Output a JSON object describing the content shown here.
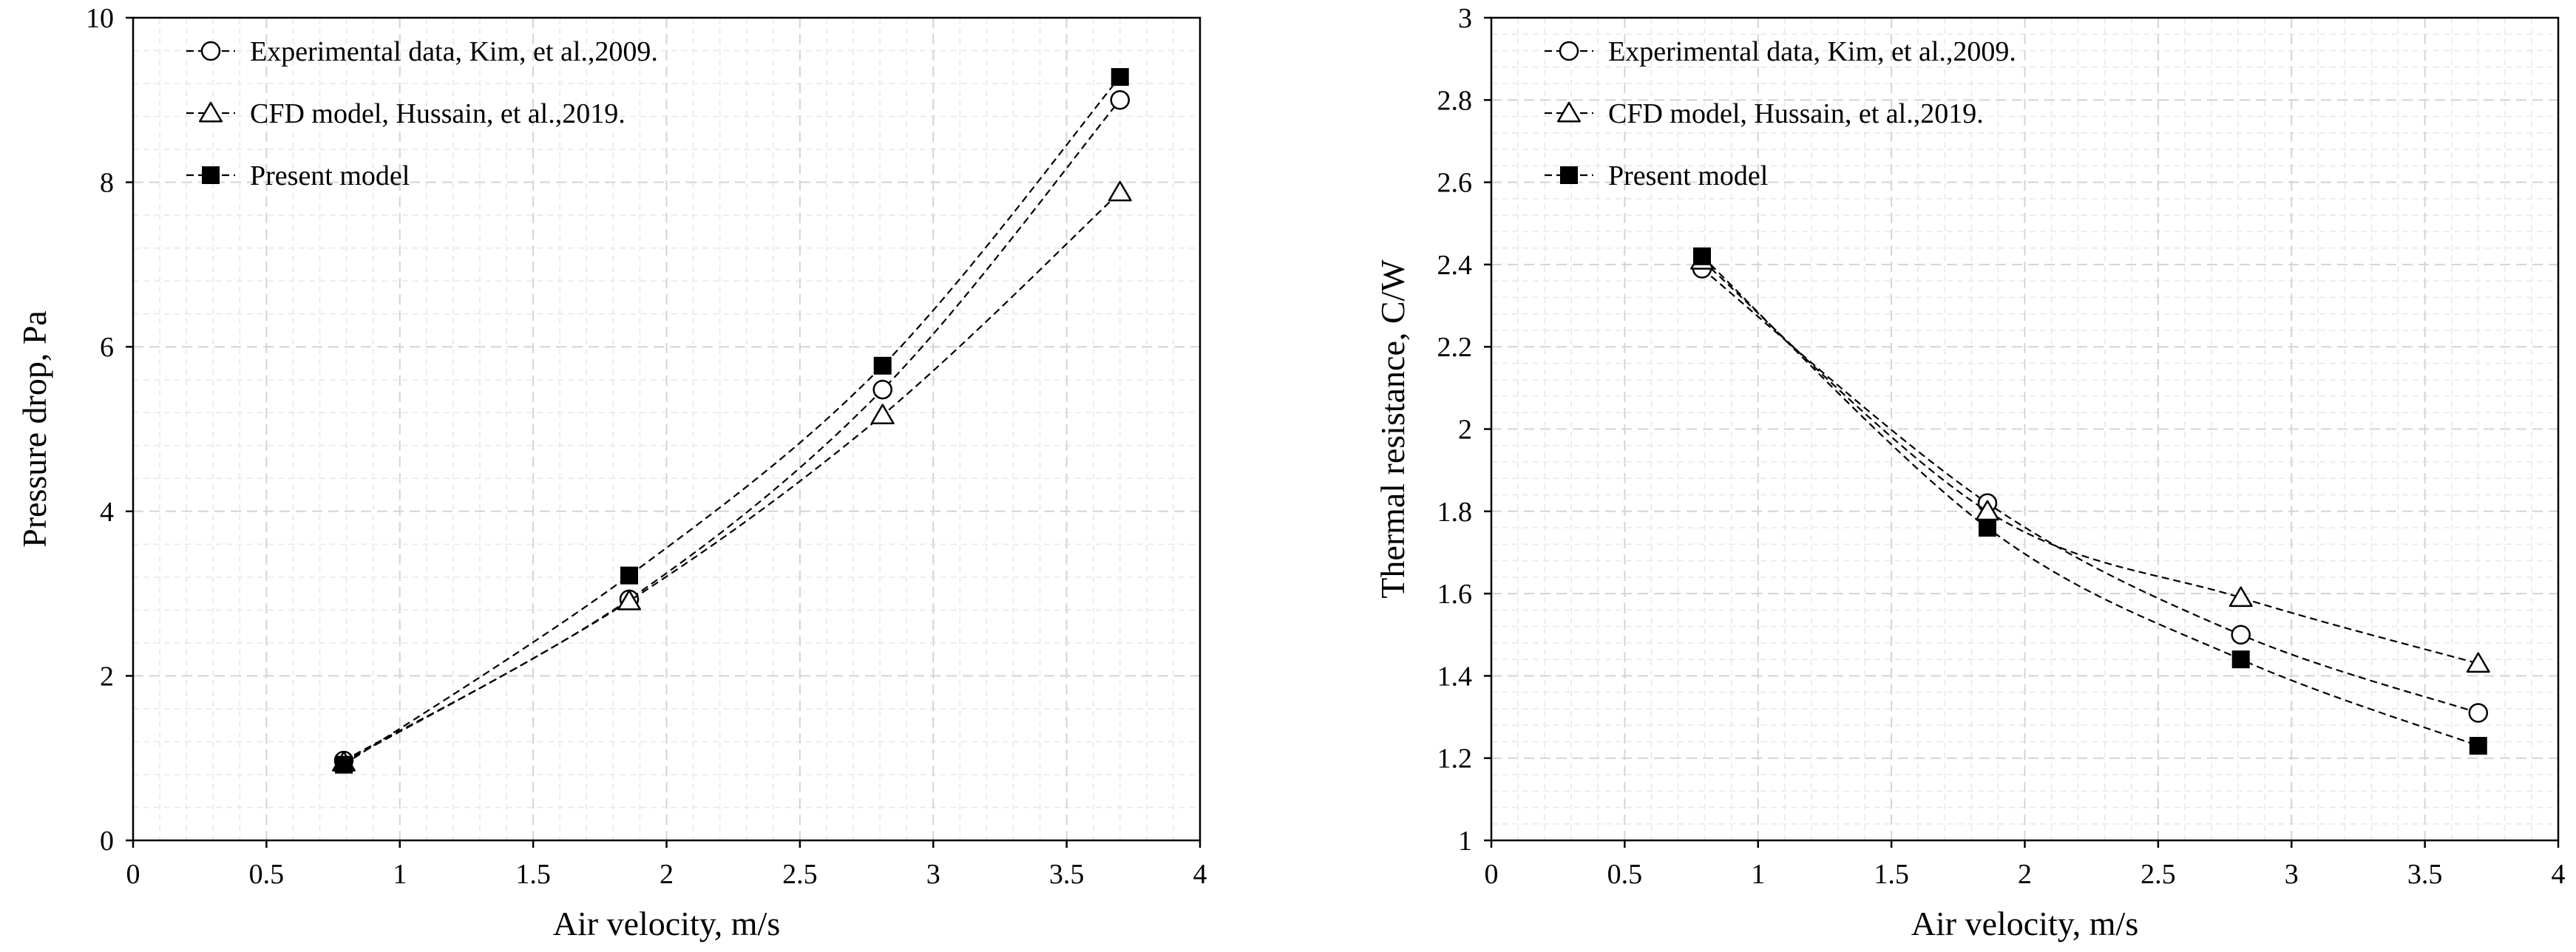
{
  "colors": {
    "background": "#ffffff",
    "ink": "#000000",
    "grid_major": "#d4d4d4",
    "grid_minor": "#e8e8e8"
  },
  "chart_data": [
    {
      "type": "line",
      "title": "",
      "xlabel": "Air velocity, m/s",
      "ylabel": "Pressure drop, Pa",
      "xlim": [
        0,
        4
      ],
      "ylim": [
        0,
        10
      ],
      "xticks": [
        0,
        0.5,
        1,
        1.5,
        2,
        2.5,
        3,
        3.5,
        4
      ],
      "xtick_labels": [
        "0",
        "0.5",
        "1",
        "1.5",
        "2",
        "2.5",
        "3",
        "3.5",
        "4"
      ],
      "yticks": [
        0,
        2,
        4,
        6,
        8,
        10
      ],
      "ytick_labels": [
        "0",
        "2",
        "4",
        "6",
        "8",
        "10"
      ],
      "grid": true,
      "legend_position": "top-left",
      "series": [
        {
          "name": "Experimental data, Kim, et al.,2009.",
          "marker": "circle-open",
          "line": "dashed",
          "x": [
            0.79,
            1.86,
            2.81,
            3.7
          ],
          "y": [
            0.97,
            2.93,
            5.48,
            9.0
          ]
        },
        {
          "name": "CFD model, Hussain, et al.,2019.",
          "marker": "triangle-open",
          "line": "dashed",
          "x": [
            0.79,
            1.86,
            2.81,
            3.7
          ],
          "y": [
            0.95,
            2.91,
            5.17,
            7.88
          ]
        },
        {
          "name": "Present model",
          "marker": "square-filled",
          "line": "dashed",
          "x": [
            0.79,
            1.86,
            2.81,
            3.7
          ],
          "y": [
            0.92,
            3.22,
            5.77,
            9.28
          ]
        }
      ]
    },
    {
      "type": "line",
      "title": "",
      "xlabel": "Air velocity, m/s",
      "ylabel": "Thermal resistance, C/W",
      "xlim": [
        0,
        4
      ],
      "ylim": [
        1,
        3
      ],
      "xticks": [
        0,
        0.5,
        1,
        1.5,
        2,
        2.5,
        3,
        3.5,
        4
      ],
      "xtick_labels": [
        "0",
        "0.5",
        "1",
        "1.5",
        "2",
        "2.5",
        "3",
        "3.5",
        "4"
      ],
      "yticks": [
        1,
        1.2,
        1.4,
        1.6,
        1.8,
        2,
        2.2,
        2.4,
        2.6,
        2.8,
        3
      ],
      "ytick_labels": [
        "1",
        "1.2",
        "1.4",
        "1.6",
        "1.8",
        "2",
        "2.2",
        "2.4",
        "2.6",
        "2.8",
        "3"
      ],
      "grid": true,
      "legend_position": "top-left",
      "series": [
        {
          "name": "Experimental data, Kim, et al.,2009.",
          "marker": "circle-open",
          "line": "dashed",
          "x": [
            0.79,
            1.86,
            2.81,
            3.7
          ],
          "y": [
            2.39,
            1.82,
            1.5,
            1.31
          ]
        },
        {
          "name": "CFD model, Hussain, et al.,2019.",
          "marker": "triangle-open",
          "line": "dashed",
          "x": [
            0.79,
            1.86,
            2.81,
            3.7
          ],
          "y": [
            2.41,
            1.8,
            1.59,
            1.43
          ]
        },
        {
          "name": "Present model",
          "marker": "square-filled",
          "line": "dashed",
          "x": [
            0.79,
            1.86,
            2.81,
            3.7
          ],
          "y": [
            2.42,
            1.76,
            1.44,
            1.23
          ]
        }
      ]
    }
  ]
}
